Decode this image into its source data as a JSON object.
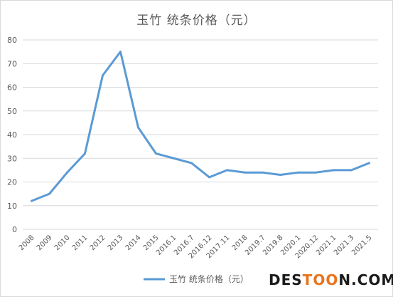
{
  "chart_data": {
    "type": "line",
    "title": "玉竹 统条价格（元）",
    "xlabel": "",
    "ylabel": "",
    "categories": [
      "2008",
      "2009",
      "2010",
      "2011",
      "2012",
      "2013",
      "2014",
      "2015",
      "2016.1",
      "2016.7",
      "2016.12",
      "2017.11",
      "2018",
      "2019.7",
      "2019.8",
      "2020.1",
      "2020.12",
      "2021.1",
      "2021.3",
      "2021.5"
    ],
    "series": [
      {
        "name": "玉竹 统条价格（元）",
        "values": [
          12,
          15,
          24,
          32,
          65,
          75,
          43,
          32,
          30,
          28,
          22,
          25,
          24,
          24,
          23,
          24,
          24,
          25,
          25,
          28
        ]
      }
    ],
    "yticks": [
      0,
      10,
      20,
      30,
      40,
      50,
      60,
      70,
      80
    ],
    "ylim": [
      0,
      80
    ],
    "grid": true,
    "legend_position": "bottom",
    "line_color": "#5b9bd5"
  },
  "watermark": {
    "part1": "DES",
    "part2": "TOO",
    "part3": "N",
    "part4": ".COM"
  }
}
